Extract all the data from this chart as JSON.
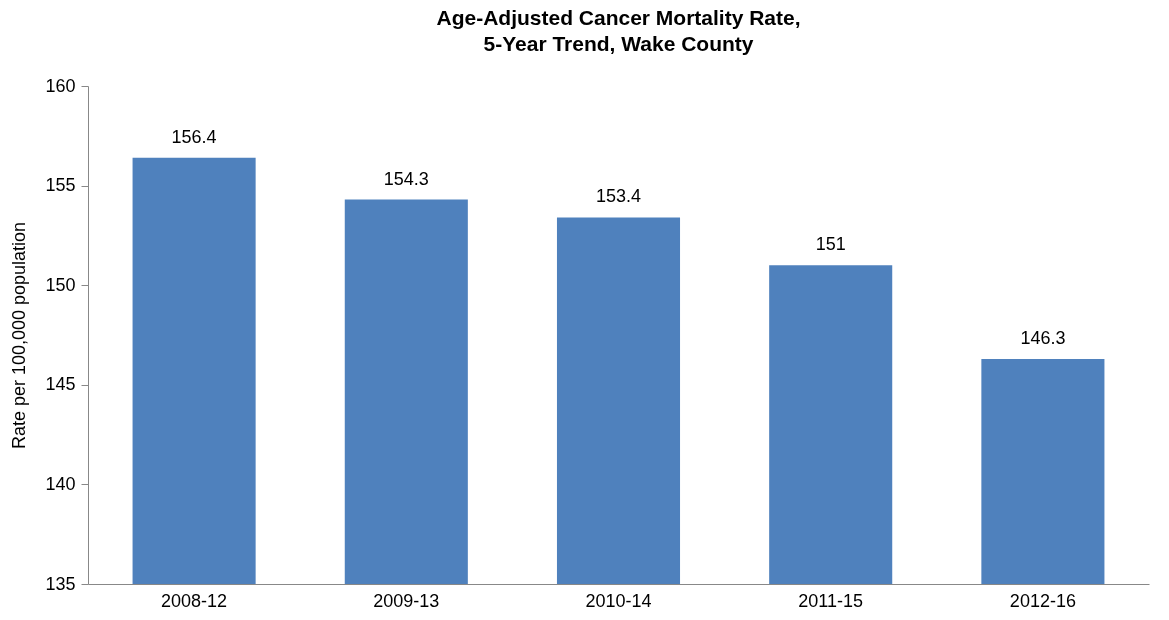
{
  "chart_data": {
    "type": "bar",
    "title": "Age-Adjusted Cancer Mortality Rate,\n5-Year Trend, Wake County",
    "ylabel": "Rate per 100,000 population",
    "categories": [
      "2008-12",
      "2009-13",
      "2010-14",
      "2011-15",
      "2012-16"
    ],
    "values": [
      156.4,
      154.3,
      153.4,
      151,
      146.3
    ],
    "color": "#4f81bd",
    "ylim": [
      135,
      160
    ],
    "yticks": [
      135,
      140,
      145,
      150,
      155,
      160
    ],
    "grid": false,
    "data_labels": true
  }
}
